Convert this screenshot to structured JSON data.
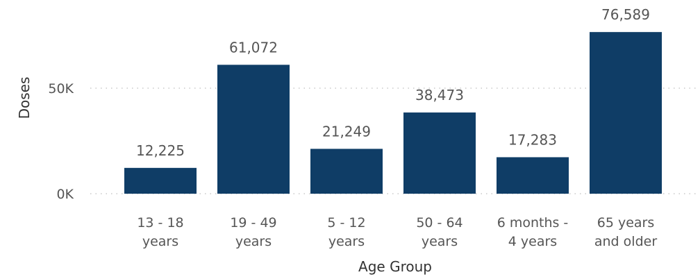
{
  "chart_data": {
    "type": "bar",
    "categories": [
      [
        "13 - 18",
        "years"
      ],
      [
        "19 - 49",
        "years"
      ],
      [
        "5 - 12",
        "years"
      ],
      [
        "50 - 64",
        "years"
      ],
      [
        "6 months -",
        "4 years"
      ],
      [
        "65 years",
        "and older"
      ]
    ],
    "values": [
      12225,
      61072,
      21249,
      38473,
      17283,
      76589
    ],
    "data_labels": [
      "12,225",
      "61,072",
      "21,249",
      "38,473",
      "17,283",
      "76,589"
    ],
    "xlabel": "Age Group",
    "ylabel": "Doses",
    "y_ticks": [
      {
        "value": 0,
        "label": "0K"
      },
      {
        "value": 50000,
        "label": "50K"
      }
    ],
    "ylim": [
      0,
      80000
    ],
    "grid": true,
    "legend": "none",
    "colors": {
      "bar": "#0f3d66",
      "grid": "#c8c8c8",
      "text": "#555555"
    }
  }
}
